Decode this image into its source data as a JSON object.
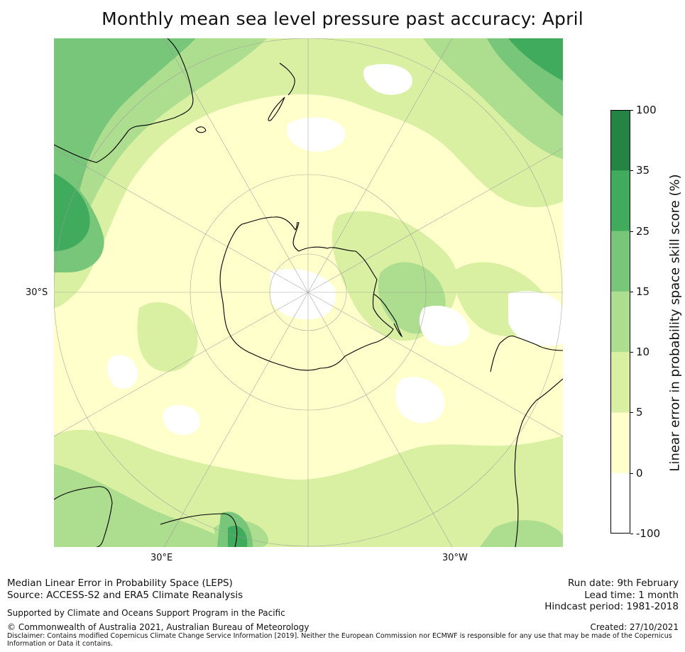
{
  "title": "Monthly mean sea level pressure past accuracy: April",
  "map": {
    "projection": "South polar stereographic",
    "lat_label": "30°S",
    "lon_labels": [
      "30°E",
      "30°W"
    ]
  },
  "colorbar": {
    "title": "Linear error in probability space skill score (%)",
    "ticks": [
      "100",
      "35",
      "25",
      "15",
      "10",
      "5",
      "0",
      "-100"
    ],
    "bins": [
      {
        "range": "35 to 100",
        "color": "#238443"
      },
      {
        "range": "25 to 35",
        "color": "#41ab5d"
      },
      {
        "range": "15 to 25",
        "color": "#78c679"
      },
      {
        "range": "10 to 15",
        "color": "#addd8e"
      },
      {
        "range": "5 to 10",
        "color": "#d9f0a3"
      },
      {
        "range": "0 to 5",
        "color": "#ffffcc"
      },
      {
        "range": "-100 to 0",
        "color": "#ffffff"
      }
    ]
  },
  "footer": {
    "left_line1": "Median Linear Error in Probability Space (LEPS)",
    "left_line2": "Source: ACCESS-S2 and ERA5 Climate Reanalysis",
    "supported": "Supported by Climate and Oceans Support Program in the Pacific",
    "copyright": "© Commonwealth of Australia 2021, Australian Bureau of Meteorology",
    "run_date": "Run date: 9th February",
    "lead_time": "Lead time: 1 month",
    "hindcast": "Hindcast period: 1981-2018",
    "created": "Created: 27/10/2021",
    "disclaimer": "Disclaimer: Contains modified Copernicus Climate Change Service Information [2019]. Neither the European Commission nor ECMWF is responsible for any use that may be made of the Copernicus Information or Data it contains."
  }
}
